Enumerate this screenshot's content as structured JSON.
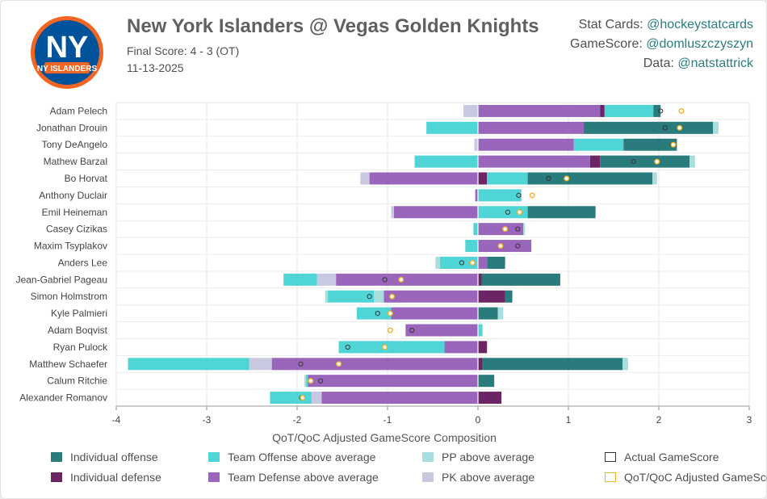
{
  "header": {
    "title": "New York Islanders @ Vegas Golden Knights",
    "final_score": "Final Score: 4 - 3 (OT)",
    "date": "11-13-2025",
    "logo_text": "NY ISLANDERS"
  },
  "credits": [
    {
      "label": "Stat Cards:",
      "handle": "@hockeystatcards"
    },
    {
      "label": "GameScore:",
      "handle": "@domluszczyszyn"
    },
    {
      "label": "Data:",
      "handle": "@natstattrick"
    }
  ],
  "colors": {
    "ind_off": "#2a7b7b",
    "ind_def": "#6b2565",
    "team_off": "#4fd5d5",
    "team_def": "#9a66bb",
    "pp": "#a8dede",
    "pk": "#c8c8e0",
    "actual": "#333333",
    "adjusted": "#f1b12b"
  },
  "chart_data": {
    "type": "bar",
    "orientation": "horizontal-stacked-diverging",
    "xlabel": "QoT/QoC Adjusted GameScore Composition",
    "xlim": [
      -4,
      3
    ],
    "xticks": [
      -4,
      -3,
      -2,
      -1,
      0,
      1,
      2,
      3
    ],
    "legend": [
      {
        "key": "ind_off",
        "label": "Individual offense",
        "kind": "fill"
      },
      {
        "key": "team_off",
        "label": "Team Offense above average",
        "kind": "fill"
      },
      {
        "key": "pp",
        "label": "PP above average",
        "kind": "fill"
      },
      {
        "key": "actual",
        "label": "Actual GameScore",
        "kind": "outline"
      },
      {
        "key": "ind_def",
        "label": "Individual defense",
        "kind": "fill"
      },
      {
        "key": "team_def",
        "label": "Team Defense above average",
        "kind": "fill"
      },
      {
        "key": "pk",
        "label": "PK above average",
        "kind": "fill"
      },
      {
        "key": "adjusted",
        "label": "QoT/QoC Adjusted GameScore",
        "kind": "outline"
      }
    ],
    "players": [
      {
        "name": "Adam Pelech",
        "segments": [
          [
            "team_def",
            0,
            1.35
          ],
          [
            "ind_def",
            1.35,
            1.4
          ],
          [
            "team_off",
            1.4,
            1.94
          ],
          [
            "ind_off",
            1.94,
            2.02
          ],
          [
            "pk",
            -0.16,
            0
          ]
        ],
        "actual": 2.02,
        "adjusted": 2.25
      },
      {
        "name": "Jonathan Drouin",
        "segments": [
          [
            "team_def",
            0,
            1.17
          ],
          [
            "ind_off",
            1.17,
            2.6
          ],
          [
            "pp",
            2.6,
            2.66
          ],
          [
            "team_off",
            -0.57,
            0
          ]
        ],
        "actual": 2.07,
        "adjusted": 2.23
      },
      {
        "name": "Tony DeAngelo",
        "segments": [
          [
            "team_def",
            0,
            1.06
          ],
          [
            "team_off",
            1.06,
            1.61
          ],
          [
            "ind_off",
            1.61,
            2.2
          ],
          [
            "pk",
            -0.04,
            0
          ]
        ],
        "actual": 2.15,
        "adjusted": 2.16
      },
      {
        "name": "Mathew Barzal",
        "segments": [
          [
            "team_def",
            0,
            1.24
          ],
          [
            "ind_def",
            1.24,
            1.35
          ],
          [
            "ind_off",
            1.35,
            2.34
          ],
          [
            "pp",
            2.34,
            2.4
          ],
          [
            "team_off",
            -0.7,
            0
          ]
        ],
        "actual": 1.72,
        "adjusted": 1.98
      },
      {
        "name": "Bo Horvat",
        "segments": [
          [
            "ind_def",
            0,
            0.1
          ],
          [
            "team_off",
            0.1,
            0.55
          ],
          [
            "ind_off",
            0.55,
            1.93
          ],
          [
            "pp",
            1.93,
            1.98
          ],
          [
            "team_def",
            -1.2,
            0
          ],
          [
            "pk",
            -1.3,
            -1.2
          ]
        ],
        "actual": 0.78,
        "adjusted": 0.98
      },
      {
        "name": "Anthony Duclair",
        "segments": [
          [
            "team_off",
            0,
            0.48
          ],
          [
            "team_def",
            -0.03,
            0
          ]
        ],
        "actual": 0.45,
        "adjusted": 0.6
      },
      {
        "name": "Emil Heineman",
        "segments": [
          [
            "team_off",
            0,
            0.55
          ],
          [
            "ind_off",
            0.55,
            1.3
          ],
          [
            "team_def",
            -0.93,
            0
          ],
          [
            "pk",
            -0.96,
            -0.93
          ]
        ],
        "actual": 0.33,
        "adjusted": 0.46
      },
      {
        "name": "Casey Cizikas",
        "segments": [
          [
            "team_def",
            0,
            0.5
          ],
          [
            "pp",
            0.5,
            0.52
          ],
          [
            "team_off",
            -0.05,
            0
          ]
        ],
        "actual": 0.44,
        "adjusted": 0.3
      },
      {
        "name": "Maxim Tsyplakov",
        "segments": [
          [
            "team_def",
            0,
            0.59
          ],
          [
            "team_off",
            -0.14,
            0
          ]
        ],
        "actual": 0.44,
        "adjusted": 0.25
      },
      {
        "name": "Anders Lee",
        "segments": [
          [
            "team_def",
            0,
            0.1
          ],
          [
            "ind_off",
            0.1,
            0.3
          ],
          [
            "team_off",
            -0.42,
            0
          ],
          [
            "pp",
            -0.47,
            -0.42
          ]
        ],
        "actual": -0.18,
        "adjusted": -0.06
      },
      {
        "name": "Jean-Gabriel Pageau",
        "segments": [
          [
            "ind_def",
            0,
            0.04
          ],
          [
            "ind_off",
            0.04,
            0.91
          ],
          [
            "team_def",
            -1.57,
            0
          ],
          [
            "pk",
            -1.78,
            -1.57
          ],
          [
            "team_off",
            -2.15,
            -1.78
          ]
        ],
        "actual": -1.03,
        "adjusted": -0.85
      },
      {
        "name": "Simon Holmstrom",
        "segments": [
          [
            "ind_def",
            0,
            0.3
          ],
          [
            "ind_off",
            0.3,
            0.38
          ],
          [
            "team_def",
            -1.04,
            0
          ],
          [
            "pp",
            -1.15,
            -1.04
          ],
          [
            "team_off",
            -1.66,
            -1.15
          ],
          [
            "pp",
            -1.69,
            -1.66
          ]
        ],
        "actual": -1.2,
        "adjusted": -0.95
      },
      {
        "name": "Kyle Palmieri",
        "segments": [
          [
            "ind_off",
            0,
            0.22
          ],
          [
            "pp",
            0.22,
            0.28
          ],
          [
            "team_def",
            -0.96,
            0
          ],
          [
            "team_off",
            -1.34,
            -0.96
          ]
        ],
        "actual": -1.11,
        "adjusted": -0.97
      },
      {
        "name": "Adam Boqvist",
        "segments": [
          [
            "team_off",
            0,
            0.05
          ],
          [
            "team_def",
            -0.8,
            0
          ]
        ],
        "actual": -0.73,
        "adjusted": -0.97
      },
      {
        "name": "Ryan Pulock",
        "segments": [
          [
            "ind_def",
            0,
            0.1
          ],
          [
            "team_def",
            -0.37,
            0
          ],
          [
            "team_off",
            -1.54,
            -0.37
          ]
        ],
        "actual": -1.44,
        "adjusted": -1.03
      },
      {
        "name": "Matthew Schaefer",
        "segments": [
          [
            "ind_def",
            0,
            0.05
          ],
          [
            "ind_off",
            0.05,
            1.6
          ],
          [
            "pp",
            1.6,
            1.66
          ],
          [
            "team_def",
            -2.28,
            0
          ],
          [
            "pk",
            -2.53,
            -2.28
          ],
          [
            "team_off",
            -3.87,
            -2.53
          ]
        ],
        "actual": -1.96,
        "adjusted": -1.54
      },
      {
        "name": "Calum Ritchie",
        "segments": [
          [
            "ind_off",
            0,
            0.18
          ],
          [
            "team_def",
            -1.9,
            0
          ],
          [
            "team_off",
            -1.9,
            -1.88
          ],
          [
            "pp",
            -1.92,
            -1.9
          ]
        ],
        "actual": -1.74,
        "adjusted": -1.85
      },
      {
        "name": "Alexander Romanov",
        "segments": [
          [
            "ind_def",
            0,
            0.26
          ],
          [
            "team_def",
            -1.73,
            0
          ],
          [
            "pk",
            -1.84,
            -1.73
          ],
          [
            "team_off",
            -2.3,
            -1.84
          ]
        ],
        "actual": -1.95,
        "adjusted": -1.94
      }
    ]
  }
}
